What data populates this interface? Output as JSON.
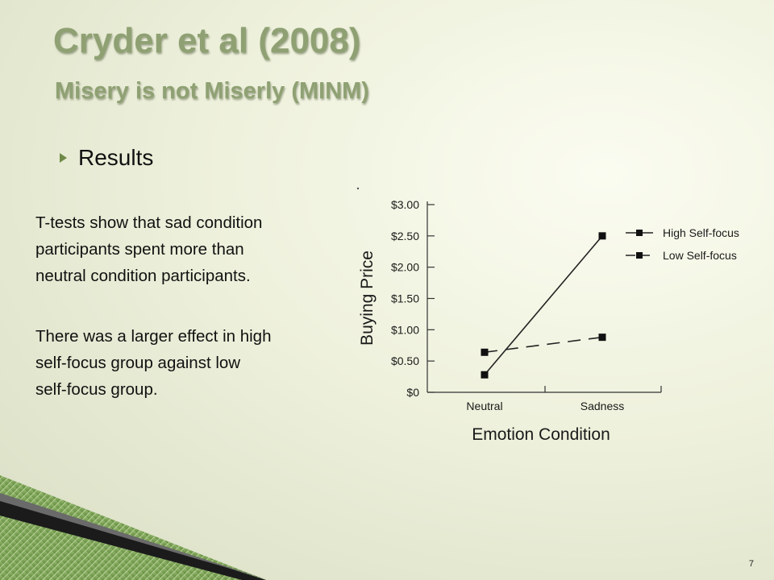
{
  "slide": {
    "title": "Cryder et al (2008)",
    "subtitle": "Misery is not Miserly (MINM)",
    "bullet": "Results",
    "paragraph1": "T-tests show that sad condition\nparticipants spent more than\nneutral condition participants.",
    "paragraph2": "There was a larger effect in high\nself-focus group against low\nself-focus group.",
    "page_number": "7"
  },
  "colors": {
    "title": "#8fa173",
    "accent_green": "#6f8a48"
  },
  "chart_data": {
    "type": "line",
    "categories": [
      "Neutral",
      "Sadness"
    ],
    "xlabel": "Emotion Condition",
    "ylabel": "Buying Price",
    "ylim": [
      0,
      3.0
    ],
    "yticks": [
      0,
      0.5,
      1.0,
      1.5,
      2.0,
      2.5,
      3.0
    ],
    "ytick_labels": [
      "$0",
      "$0.50",
      "$1.00",
      "$1.50",
      "$2.00",
      "$2.50",
      "$3.00"
    ],
    "legend_position": "top-right",
    "series": [
      {
        "name": "High Self-focus",
        "values": [
          0.28,
          2.5
        ],
        "style": "solid"
      },
      {
        "name": "Low Self-focus",
        "values": [
          0.64,
          0.88
        ],
        "style": "dashed"
      }
    ]
  }
}
